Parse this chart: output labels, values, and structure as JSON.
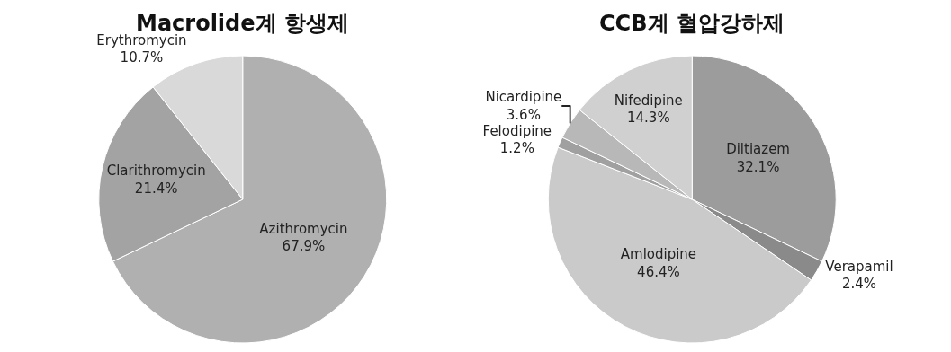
{
  "chart_data": [
    {
      "type": "pie",
      "title": "Macrolide계 항생제",
      "categories": [
        "Azithromycin",
        "Clarithromycin",
        "Erythromycin"
      ],
      "values": [
        67.9,
        21.4,
        10.7
      ],
      "value_labels": [
        "67.9%",
        "21.4%",
        "10.7%"
      ],
      "colors": [
        "#b0b0b0",
        "#a3a3a3",
        "#d9d9d9"
      ],
      "legend": false
    },
    {
      "type": "pie",
      "title": "CCB계 혈압강하제",
      "categories": [
        "Diltiazem",
        "Verapamil",
        "Amlodipine",
        "Felodipine",
        "Nicardipine",
        "Nifedipine"
      ],
      "values": [
        32.1,
        2.4,
        46.4,
        1.2,
        3.6,
        14.3
      ],
      "value_labels": [
        "32.1%",
        "2.4%",
        "46.4%",
        "1.2%",
        "3.6%",
        "14.3%"
      ],
      "colors": [
        "#9c9c9c",
        "#8a8a8a",
        "#cacaca",
        "#a0a0a0",
        "#b8b8b8",
        "#d0d0d0"
      ],
      "legend": false
    }
  ]
}
